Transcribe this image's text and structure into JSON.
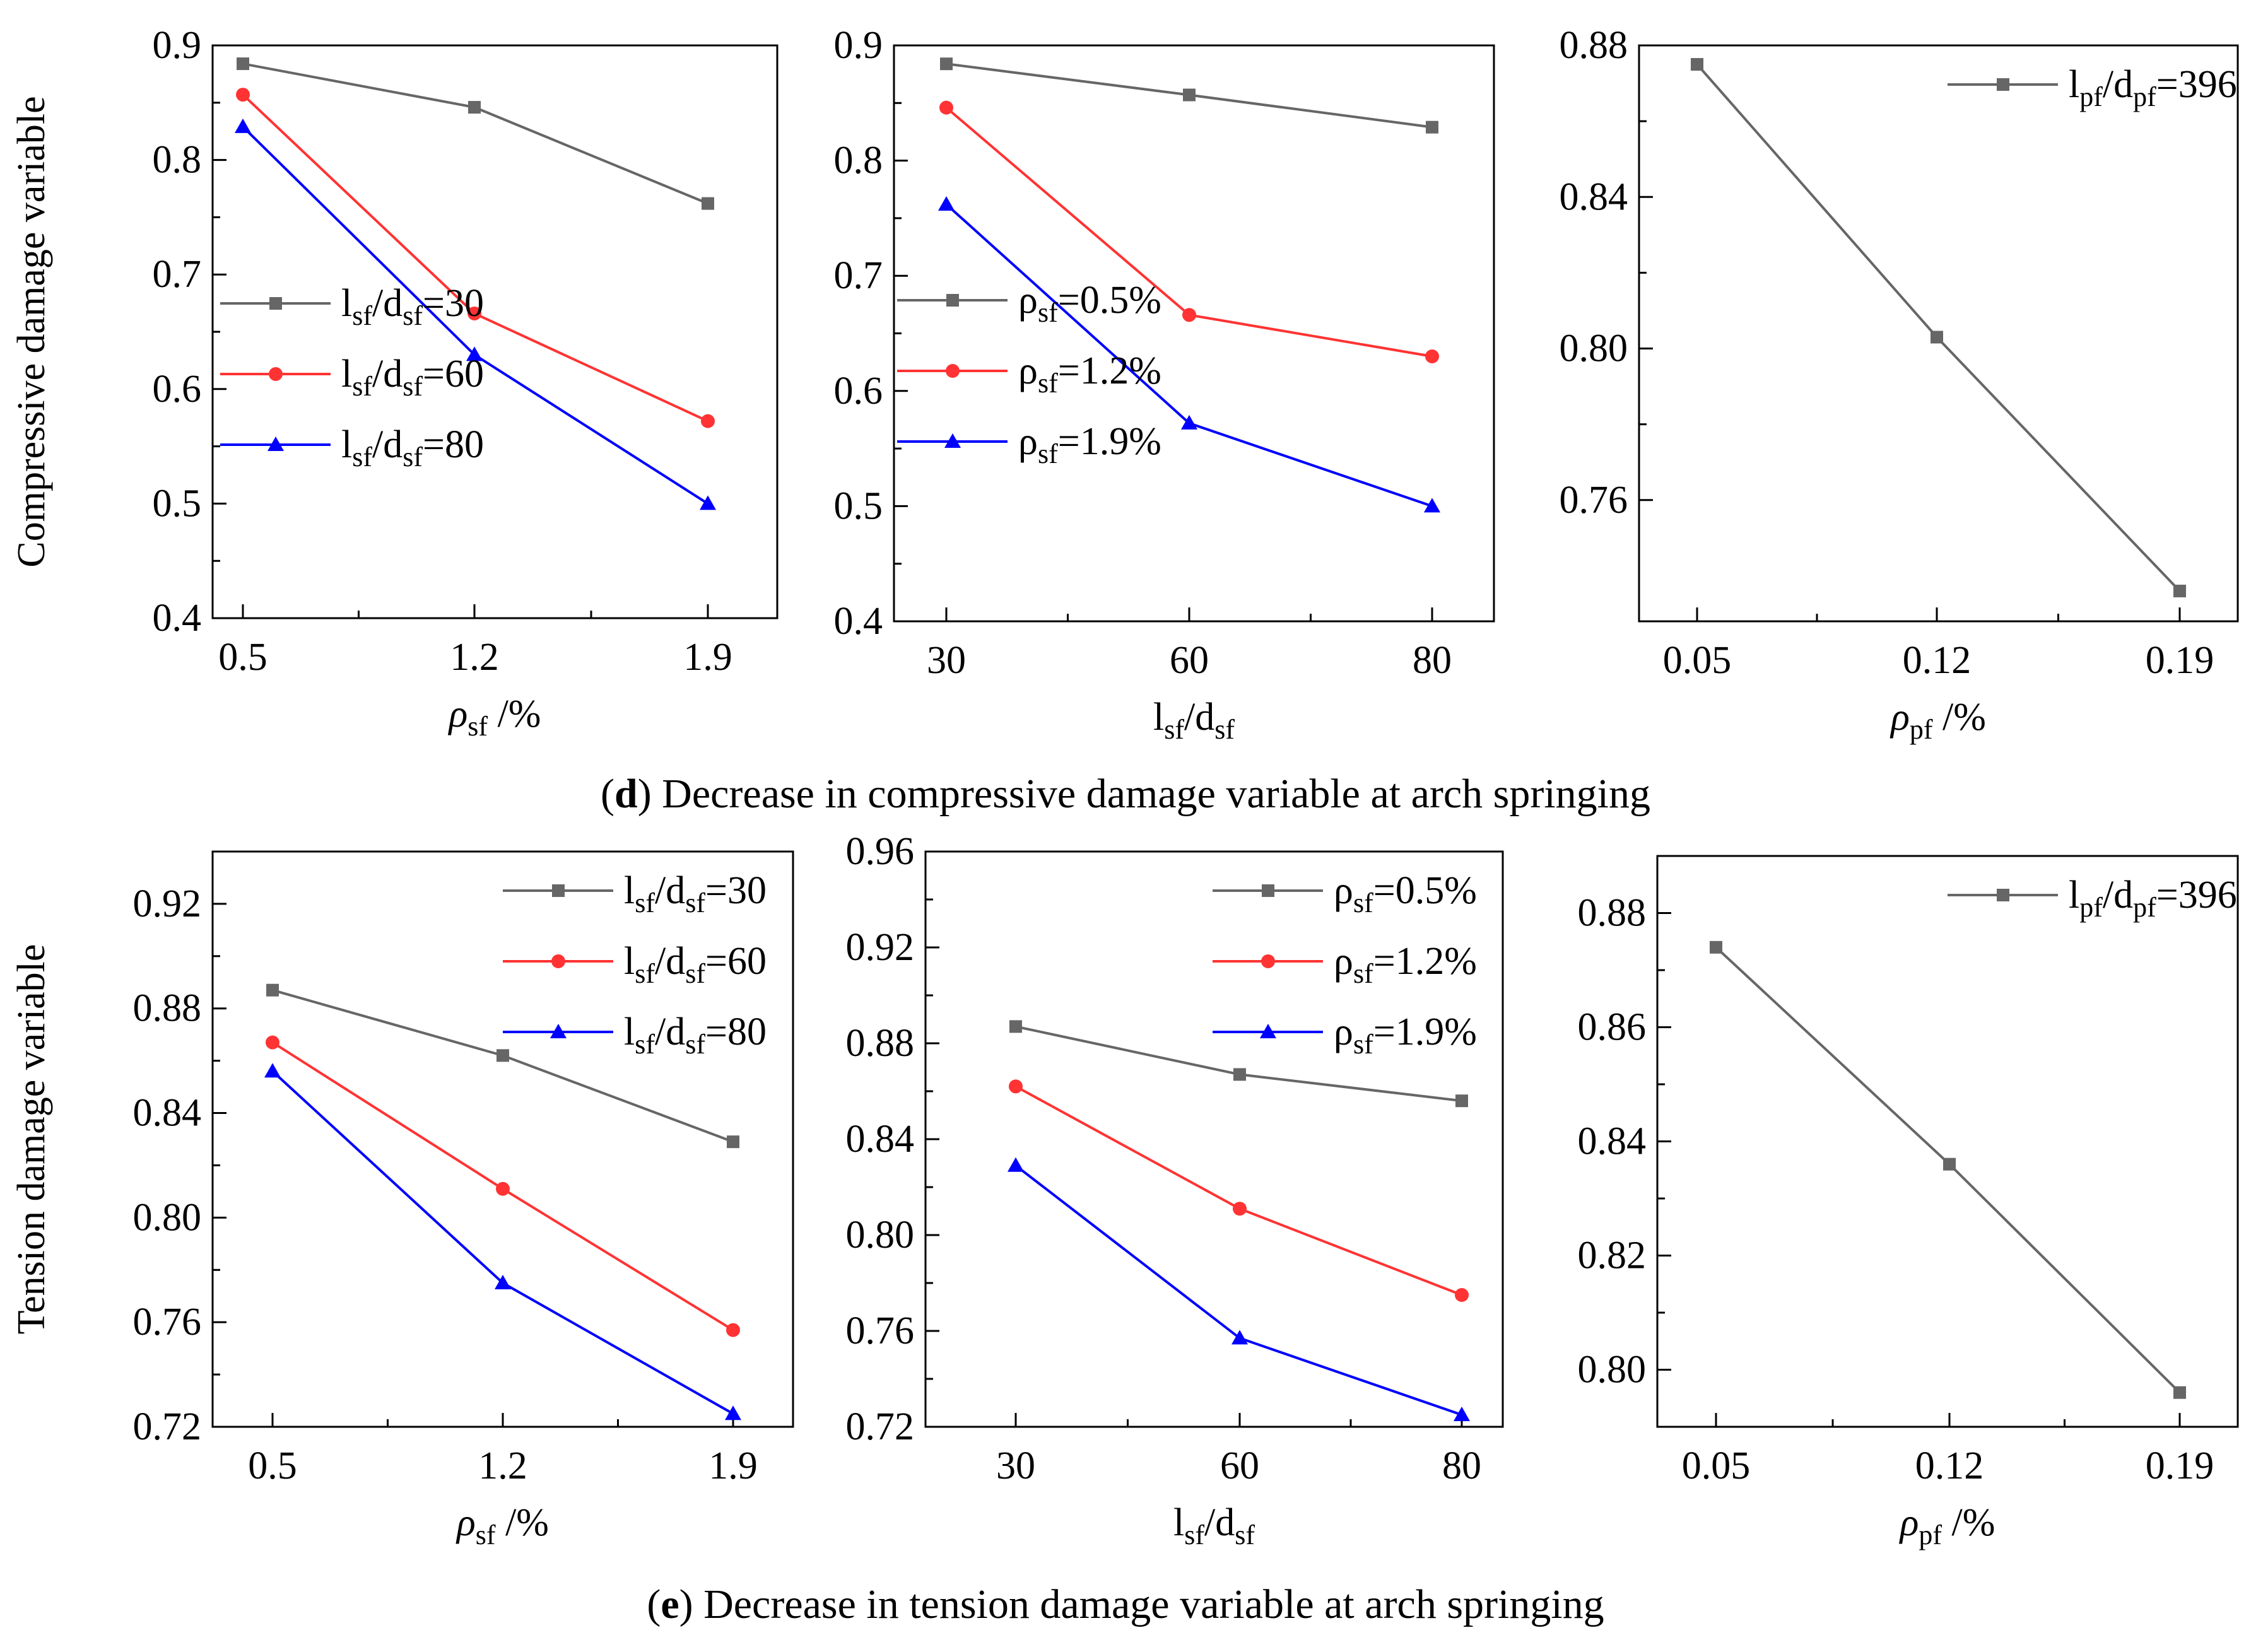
{
  "figure": {
    "caption_d": {
      "prefix": "(",
      "letter": "d",
      "text": ") Decrease in compressive damage variable at arch springing"
    },
    "caption_e": {
      "prefix": "(",
      "letter": "e",
      "text": ") Decrease in tension damage variable at arch springing"
    }
  },
  "colors": {
    "gray": "#666666",
    "red": "#FF3333",
    "blue": "#0000FF"
  },
  "chart_data": [
    {
      "id": "d1",
      "type": "line",
      "ylabel": "Compressive damage variable",
      "xlabel": {
        "main": "ρ",
        "sub": "sf",
        "suffix": " /%",
        "italic": true
      },
      "categories": [
        "0.5",
        "1.2",
        "1.9"
      ],
      "ylim": [
        0.4,
        0.9
      ],
      "yticks": [
        0.4,
        0.5,
        0.6,
        0.7,
        0.8,
        0.9
      ],
      "ydecimals": 1,
      "legend_pos": "bottom-left",
      "series": [
        {
          "name": "lsf/dsf=30",
          "label": {
            "a": "l",
            "as": "sf",
            "b": "/d",
            "bs": "sf",
            "c": "=30"
          },
          "color": "#666666",
          "marker": "square",
          "values": [
            0.884,
            0.846,
            0.762
          ]
        },
        {
          "name": "lsf/dsf=60",
          "label": {
            "a": "l",
            "as": "sf",
            "b": "/d",
            "bs": "sf",
            "c": "=60"
          },
          "color": "#FF3333",
          "marker": "circle",
          "values": [
            0.857,
            0.666,
            0.572
          ]
        },
        {
          "name": "lsf/dsf=80",
          "label": {
            "a": "l",
            "as": "sf",
            "b": "/d",
            "bs": "sf",
            "c": "=80"
          },
          "color": "#0000FF",
          "marker": "triangle",
          "values": [
            0.829,
            0.63,
            0.5
          ]
        }
      ]
    },
    {
      "id": "d2",
      "type": "line",
      "ylabel": "",
      "xlabel": {
        "main": "l",
        "sub": "sf",
        "mid": "/d",
        "sub2": "sf",
        "italic": false
      },
      "categories": [
        "30",
        "60",
        "80"
      ],
      "ylim": [
        0.4,
        0.9
      ],
      "yticks": [
        0.4,
        0.5,
        0.6,
        0.7,
        0.8,
        0.9
      ],
      "ydecimals": 1,
      "legend_pos": "bottom-left",
      "series": [
        {
          "name": "ρsf=0.5%",
          "label": {
            "a": "ρ",
            "as": "sf",
            "c": "=0.5%"
          },
          "color": "#666666",
          "marker": "square",
          "values": [
            0.884,
            0.857,
            0.829
          ]
        },
        {
          "name": "ρsf=1.2%",
          "label": {
            "a": "ρ",
            "as": "sf",
            "c": "=1.2%"
          },
          "color": "#FF3333",
          "marker": "circle",
          "values": [
            0.846,
            0.666,
            0.63
          ]
        },
        {
          "name": "ρsf=1.9%",
          "label": {
            "a": "ρ",
            "as": "sf",
            "c": "=1.9%"
          },
          "color": "#0000FF",
          "marker": "triangle",
          "values": [
            0.762,
            0.572,
            0.5
          ]
        }
      ]
    },
    {
      "id": "d3",
      "type": "line",
      "ylabel": "",
      "xlabel": {
        "main": "ρ",
        "sub": "pf",
        "suffix": " /%",
        "italic": true
      },
      "categories": [
        "0.05",
        "0.12",
        "0.19"
      ],
      "ylim": [
        0.728,
        0.88
      ],
      "yticks": [
        0.76,
        0.8,
        0.84,
        0.88
      ],
      "ydecimals": 2,
      "legend_pos": "top-right",
      "series": [
        {
          "name": "lpf/dpf=396",
          "label": {
            "a": "l",
            "as": "pf",
            "b": "/d",
            "bs": "pf",
            "c": "=396"
          },
          "color": "#666666",
          "marker": "square",
          "values": [
            0.875,
            0.803,
            0.736
          ]
        }
      ]
    },
    {
      "id": "e1",
      "type": "line",
      "ylabel": "Tension damage variable",
      "xlabel": {
        "main": "ρ",
        "sub": "sf",
        "suffix": " /%",
        "italic": true
      },
      "categories": [
        "0.5",
        "1.2",
        "1.9"
      ],
      "ylim": [
        0.72,
        0.94
      ],
      "yticks": [
        0.72,
        0.76,
        0.8,
        0.84,
        0.88,
        0.92
      ],
      "ydecimals": 2,
      "legend_pos": "top-right",
      "series": [
        {
          "name": "lsf/dsf=30",
          "label": {
            "a": "l",
            "as": "sf",
            "b": "/d",
            "bs": "sf",
            "c": "=30"
          },
          "color": "#666666",
          "marker": "square",
          "values": [
            0.887,
            0.862,
            0.829
          ]
        },
        {
          "name": "lsf/dsf=60",
          "label": {
            "a": "l",
            "as": "sf",
            "b": "/d",
            "bs": "sf",
            "c": "=60"
          },
          "color": "#FF3333",
          "marker": "circle",
          "values": [
            0.867,
            0.811,
            0.757
          ]
        },
        {
          "name": "lsf/dsf=80",
          "label": {
            "a": "l",
            "as": "sf",
            "b": "/d",
            "bs": "sf",
            "c": "=80"
          },
          "color": "#0000FF",
          "marker": "triangle",
          "values": [
            0.856,
            0.775,
            0.725
          ]
        }
      ]
    },
    {
      "id": "e2",
      "type": "line",
      "ylabel": "",
      "xlabel": {
        "main": "l",
        "sub": "sf",
        "mid": "/d",
        "sub2": "sf",
        "italic": false
      },
      "categories": [
        "30",
        "60",
        "80"
      ],
      "ylim": [
        0.72,
        0.96
      ],
      "yticks": [
        0.72,
        0.76,
        0.8,
        0.84,
        0.88,
        0.92,
        0.96
      ],
      "ydecimals": 2,
      "legend_pos": "top-right",
      "series": [
        {
          "name": "ρsf=0.5%",
          "label": {
            "a": "ρ",
            "as": "sf",
            "c": "=0.5%"
          },
          "color": "#666666",
          "marker": "square",
          "values": [
            0.887,
            0.867,
            0.856
          ]
        },
        {
          "name": "ρsf=1.2%",
          "label": {
            "a": "ρ",
            "as": "sf",
            "c": "=1.2%"
          },
          "color": "#FF3333",
          "marker": "circle",
          "values": [
            0.862,
            0.811,
            0.775
          ]
        },
        {
          "name": "ρsf=1.9%",
          "label": {
            "a": "ρ",
            "as": "sf",
            "c": "=1.9%"
          },
          "color": "#0000FF",
          "marker": "triangle",
          "values": [
            0.829,
            0.757,
            0.725
          ]
        }
      ]
    },
    {
      "id": "e3",
      "type": "line",
      "ylabel": "",
      "xlabel": {
        "main": "ρ",
        "sub": "pf",
        "suffix": " /%",
        "italic": true
      },
      "categories": [
        "0.05",
        "0.12",
        "0.19"
      ],
      "ylim": [
        0.79,
        0.89
      ],
      "yticks": [
        0.8,
        0.82,
        0.84,
        0.86,
        0.88
      ],
      "ydecimals": 2,
      "legend_pos": "top-right",
      "series": [
        {
          "name": "lpf/dpf=396",
          "label": {
            "a": "l",
            "as": "pf",
            "b": "/d",
            "bs": "pf",
            "c": "=396"
          },
          "color": "#666666",
          "marker": "square",
          "values": [
            0.874,
            0.836,
            0.796
          ]
        }
      ]
    }
  ]
}
